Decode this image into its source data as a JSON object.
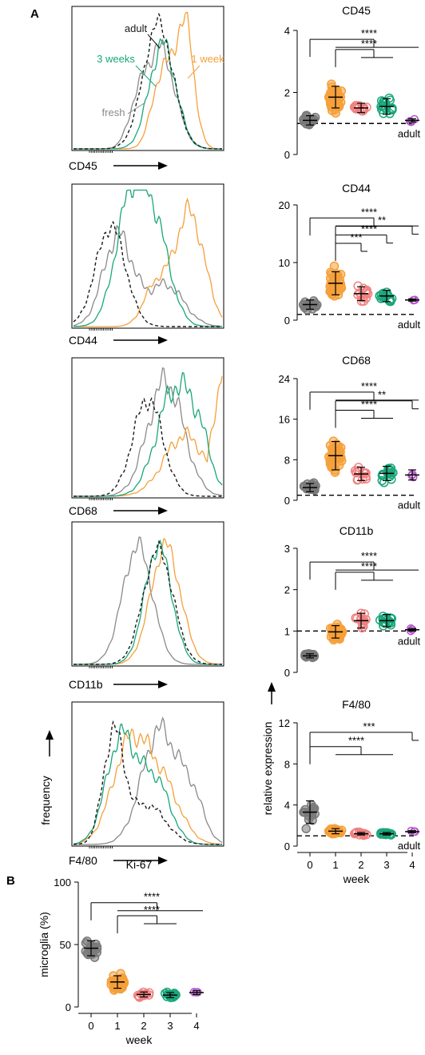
{
  "panel_labels": {
    "a": "A",
    "b": "B"
  },
  "colors": {
    "adult": "#1a1a1a",
    "fresh": "#8a8a8a",
    "week1": "#f5a03a",
    "week2": "#f08080",
    "week3": "#1aa67a",
    "week4": "#b455c8",
    "week0": "#7a7a7a"
  },
  "histograms": {
    "frequency_label": "frequency",
    "legend": {
      "adult": "adult",
      "week1": "1 week",
      "week3": "3 weeks",
      "fresh": "fresh"
    },
    "markers": [
      "CD45",
      "CD44",
      "CD68",
      "CD11b",
      "F4/80"
    ]
  },
  "scatter_common": {
    "ylabel": "relative expression",
    "xlabel": "week",
    "adult_label": "adult",
    "xticks": [
      "0",
      "1",
      "2",
      "3",
      "4"
    ]
  },
  "chart_data": [
    {
      "type": "scatter",
      "title": "CD45",
      "categories": [
        "0",
        "1",
        "2",
        "3",
        "4"
      ],
      "means": [
        1.1,
        1.85,
        1.5,
        1.55,
        1.1
      ],
      "sd": [
        0.15,
        0.35,
        0.15,
        0.25,
        0.05
      ],
      "n": [
        18,
        40,
        14,
        18,
        3
      ],
      "ylim": [
        0,
        4
      ],
      "yticks": [
        0,
        2,
        4
      ],
      "reference_line": 1,
      "significance": [
        "****",
        "****"
      ]
    },
    {
      "type": "scatter",
      "title": "CD44",
      "categories": [
        "0",
        "1",
        "2",
        "3",
        "4"
      ],
      "means": [
        2.7,
        6.4,
        4.6,
        4.2,
        3.5
      ],
      "sd": [
        0.8,
        2.0,
        1.2,
        1.0,
        0.2
      ],
      "n": [
        18,
        40,
        14,
        18,
        3
      ],
      "ylim": [
        0,
        20
      ],
      "yticks": [
        0,
        10,
        20
      ],
      "reference_line": 1,
      "significance": [
        "****",
        "**",
        "****",
        "***"
      ]
    },
    {
      "type": "scatter",
      "title": "CD68",
      "categories": [
        "0",
        "1",
        "2",
        "3",
        "4"
      ],
      "means": [
        2.5,
        8.8,
        5.2,
        5.3,
        5.0
      ],
      "sd": [
        0.8,
        2.8,
        1.3,
        1.4,
        1.0
      ],
      "n": [
        18,
        40,
        14,
        18,
        3
      ],
      "ylim": [
        0,
        24
      ],
      "yticks": [
        0,
        8,
        16,
        24
      ],
      "reference_line": 1,
      "significance": [
        "****",
        "**",
        "****"
      ]
    },
    {
      "type": "scatter",
      "title": "CD11b",
      "categories": [
        "0",
        "1",
        "2",
        "3",
        "4"
      ],
      "means": [
        0.4,
        0.98,
        1.25,
        1.25,
        1.03
      ],
      "sd": [
        0.05,
        0.15,
        0.18,
        0.15,
        0.03
      ],
      "n": [
        18,
        40,
        14,
        18,
        3
      ],
      "ylim": [
        0,
        3
      ],
      "yticks": [
        0,
        1,
        2,
        3
      ],
      "reference_line": 1,
      "significance": [
        "****",
        "****"
      ]
    },
    {
      "type": "scatter",
      "title": "F4/80",
      "categories": [
        "0",
        "1",
        "2",
        "3",
        "4"
      ],
      "means": [
        3.3,
        1.45,
        1.2,
        1.2,
        1.4
      ],
      "sd": [
        1.1,
        0.25,
        0.12,
        0.12,
        0.1
      ],
      "n": [
        18,
        40,
        14,
        18,
        3
      ],
      "ylim": [
        0,
        12
      ],
      "yticks": [
        0,
        4,
        8,
        12
      ],
      "reference_line": 1,
      "significance": [
        "***",
        "****"
      ]
    },
    {
      "type": "scatter",
      "title": "Ki-67",
      "categories": [
        "0",
        "1",
        "2",
        "3",
        "4"
      ],
      "means": [
        47,
        20,
        10,
        9.5,
        11.5
      ],
      "sd": [
        6,
        5,
        2,
        2,
        1.5
      ],
      "n": [
        18,
        40,
        14,
        18,
        3
      ],
      "ylim": [
        0,
        100
      ],
      "yticks": [
        0,
        50,
        100
      ],
      "ylabel": "microglia (%)",
      "xlabel": "week",
      "significance": [
        "****",
        "****"
      ]
    }
  ]
}
